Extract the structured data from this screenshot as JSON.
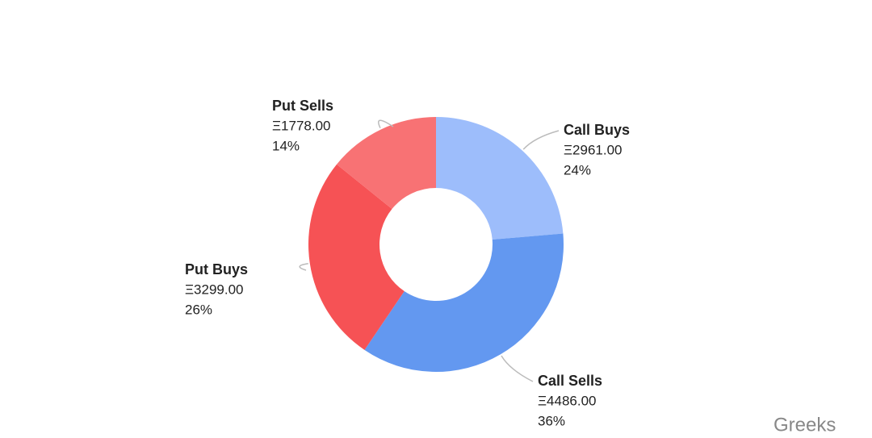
{
  "chart_data": {
    "type": "donut",
    "categories": [
      "Call Buys",
      "Call Sells",
      "Put Buys",
      "Put Sells"
    ],
    "values": [
      2961,
      4486,
      3299,
      1778
    ],
    "value_labels": [
      "Ξ2961.00",
      "Ξ4486.00",
      "Ξ3299.00",
      "Ξ1778.00"
    ],
    "percentages": [
      24,
      36,
      26,
      14
    ],
    "percentage_labels": [
      "24%",
      "36%",
      "26%",
      "14%"
    ],
    "colors": [
      "#9dbdfb",
      "#6398f0",
      "#f65255",
      "#f87274"
    ]
  },
  "watermark": "Greeks"
}
